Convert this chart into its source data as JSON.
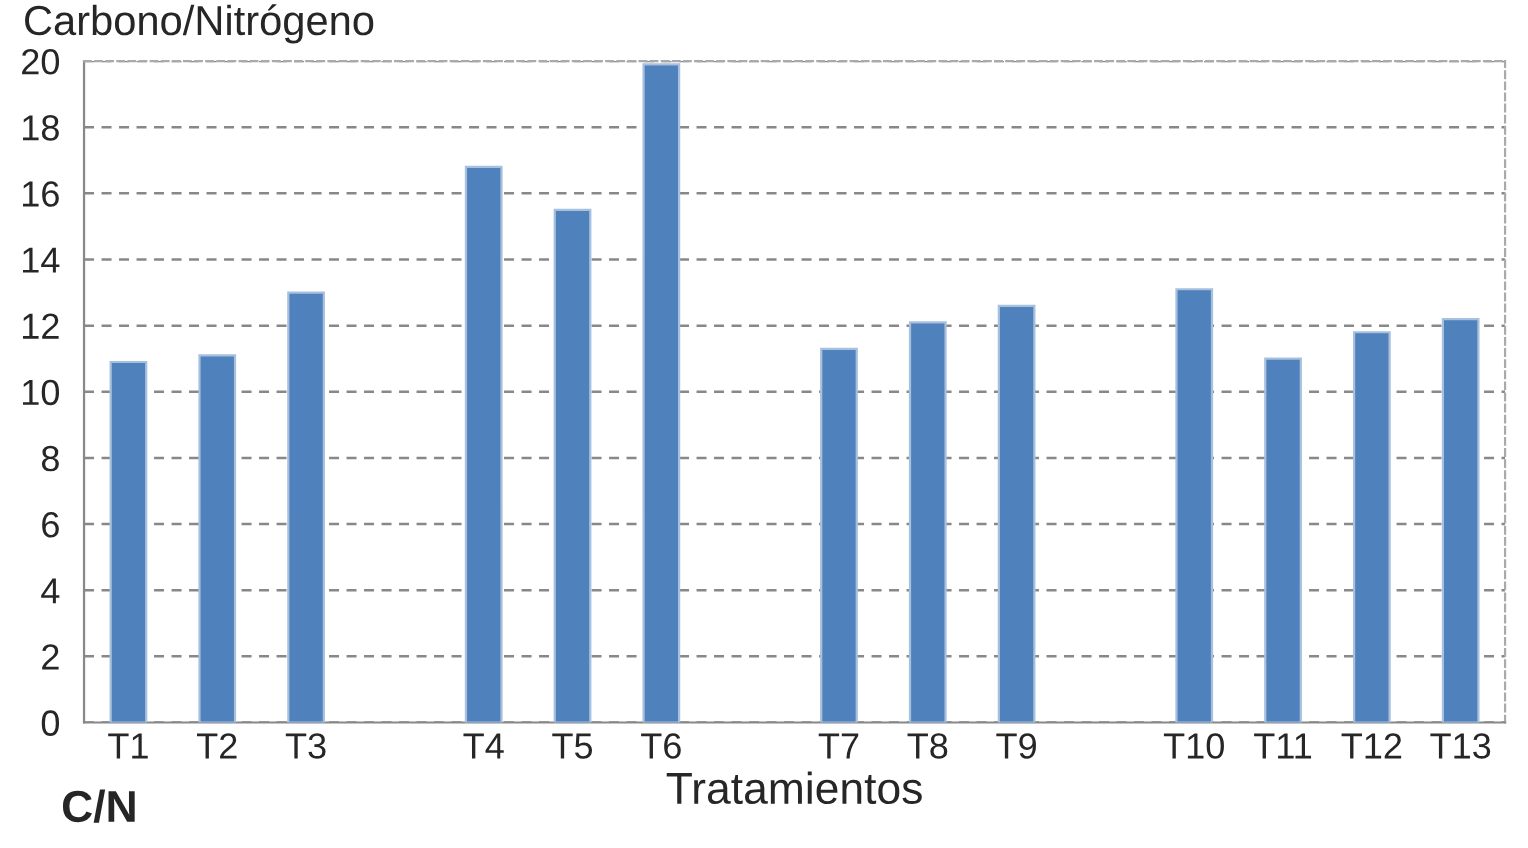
{
  "chart_data": {
    "type": "bar",
    "ylabel": "Carbono/Nitrógeno",
    "xlabel": "Tratamientos",
    "annotations": [
      "C/N"
    ],
    "categories": [
      "T1",
      "T2",
      "T3",
      null,
      "T4",
      "T5",
      "T6",
      null,
      "T7",
      "T8",
      "T9",
      null,
      "T10",
      "T11",
      "T12",
      "T13"
    ],
    "values": [
      10.9,
      11.1,
      13.0,
      null,
      16.8,
      15.5,
      19.9,
      null,
      11.3,
      12.1,
      12.6,
      null,
      13.1,
      11.0,
      11.8,
      12.2
    ],
    "color": "#4f81bd",
    "ylim": [
      0,
      20
    ],
    "yticks": [
      0,
      2,
      4,
      6,
      8,
      10,
      12,
      14,
      16,
      18,
      20
    ],
    "grid": "y",
    "legend": false
  }
}
